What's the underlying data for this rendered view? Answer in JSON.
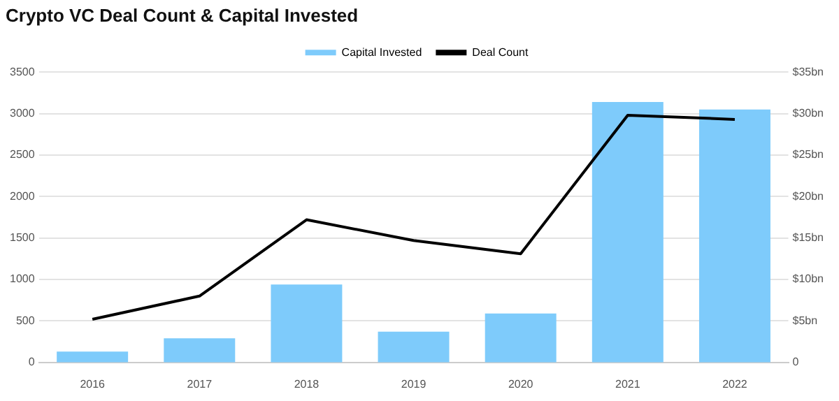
{
  "chart_data": {
    "type": "bar",
    "title": "Crypto VC Deal Count & Capital Invested",
    "categories": [
      "2016",
      "2017",
      "2018",
      "2019",
      "2020",
      "2021",
      "2022"
    ],
    "series": [
      {
        "name": "Capital Invested",
        "axis": "y2",
        "color": "#7ecbfb",
        "values": [
          1.3,
          2.9,
          9.4,
          3.7,
          5.9,
          31.4,
          30.5
        ]
      },
      {
        "name": "Deal Count",
        "type": "line",
        "axis": "y",
        "color": "#000000",
        "values": [
          520,
          800,
          1720,
          1470,
          1310,
          2980,
          2930
        ]
      }
    ],
    "ylim": [
      0,
      3500
    ],
    "yticks": [
      0,
      500,
      1000,
      1500,
      2000,
      2500,
      3000,
      3500
    ],
    "y2lim": [
      0,
      35
    ],
    "y2ticks": [
      {
        "value": 0,
        "label": "0"
      },
      {
        "value": 5,
        "label": "$5bn"
      },
      {
        "value": 10,
        "label": "$10bn"
      },
      {
        "value": 15,
        "label": "$15bn"
      },
      {
        "value": 20,
        "label": "$20bn"
      },
      {
        "value": 25,
        "label": "$25bn"
      },
      {
        "value": 30,
        "label": "$30bn"
      },
      {
        "value": 35,
        "label": "$35bn"
      }
    ],
    "grid": "y",
    "legend": "top",
    "marker": "none"
  }
}
